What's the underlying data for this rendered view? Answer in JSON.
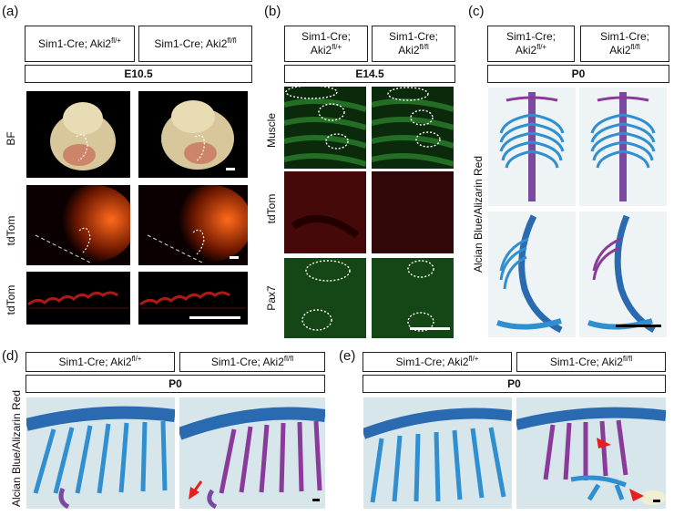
{
  "panel_a": {
    "letter": "(a)",
    "headers": [
      {
        "base": "Sim1-Cre; Aki2",
        "sup": "fl/+"
      },
      {
        "base": "Sim1-Cre; Aki2",
        "sup": "fl/fl"
      }
    ],
    "stage": "E10.5",
    "rows": [
      "BF",
      "tdTom",
      "tdTom"
    ]
  },
  "panel_b": {
    "letter": "(b)",
    "headers": [
      {
        "line1": "Sim1-Cre;",
        "base": "Aki2",
        "sup": "fl/+"
      },
      {
        "line1": "Sim1-Cre;",
        "base": "Aki2",
        "sup": "fl/fl"
      }
    ],
    "stage": "E14.5",
    "rows": [
      "Muscle",
      "tdTom",
      "Pax7"
    ]
  },
  "panel_c": {
    "letter": "(c)",
    "headers": [
      {
        "line1": "Sim1-Cre;",
        "base": "Aki2",
        "sup": "fl/+"
      },
      {
        "line1": "Sim1-Cre;",
        "base": "Aki2",
        "sup": "fl/fl"
      }
    ],
    "stage": "P0",
    "side_label": "Alcian Blue/Alizarin Red"
  },
  "panel_d": {
    "letter": "(d)",
    "headers": [
      {
        "base": "Sim1-Cre; Aki2",
        "sup": "fl/+"
      },
      {
        "base": "Sim1-Cre; Aki2",
        "sup": "fl/fl"
      }
    ],
    "stage": "P0",
    "side_label": "Alcian Blue/Alizarin Red"
  },
  "panel_e": {
    "letter": "(e)",
    "headers": [
      {
        "base": "Sim1-Cre; Aki2",
        "sup": "fl/+"
      },
      {
        "base": "Sim1-Cre; Aki2",
        "sup": "fl/fl"
      }
    ],
    "stage": "P0"
  }
}
